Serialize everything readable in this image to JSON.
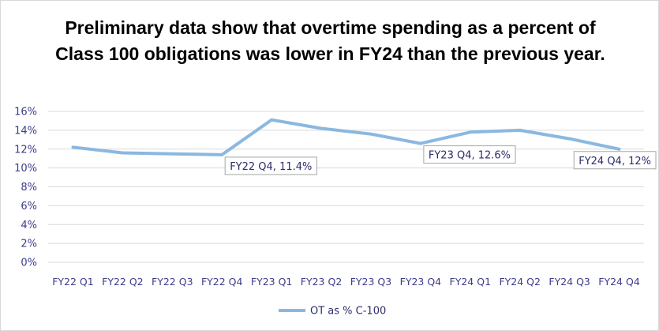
{
  "chart_data": {
    "type": "line",
    "title": "Preliminary data show that overtime spending as a percent of Class 100 obligations was lower in FY24 than the previous year.",
    "categories": [
      "FY22 Q1",
      "FY22 Q2",
      "FY22 Q3",
      "FY22 Q4",
      "FY23 Q1",
      "FY23 Q2",
      "FY23 Q3",
      "FY23 Q4",
      "FY24 Q1",
      "FY24 Q2",
      "FY24 Q3",
      "FY24 Q4"
    ],
    "series": [
      {
        "name": "OT as % C-100",
        "values": [
          12.2,
          11.6,
          11.5,
          11.4,
          15.1,
          14.2,
          13.6,
          12.6,
          13.8,
          14.0,
          13.1,
          12.0
        ],
        "color": "#8ab8e0"
      }
    ],
    "ylim": [
      0,
      16
    ],
    "yticks": [
      "0%",
      "2%",
      "4%",
      "6%",
      "8%",
      "10%",
      "12%",
      "14%",
      "16%"
    ],
    "grid": "horizontal",
    "legend": "bottom",
    "data_labels": [
      {
        "index": 3,
        "text": "FY22 Q4, 11.4%"
      },
      {
        "index": 7,
        "text": "FY23 Q4, 12.6%"
      },
      {
        "index": 11,
        "text": "FY24 Q4, 12%"
      }
    ]
  }
}
